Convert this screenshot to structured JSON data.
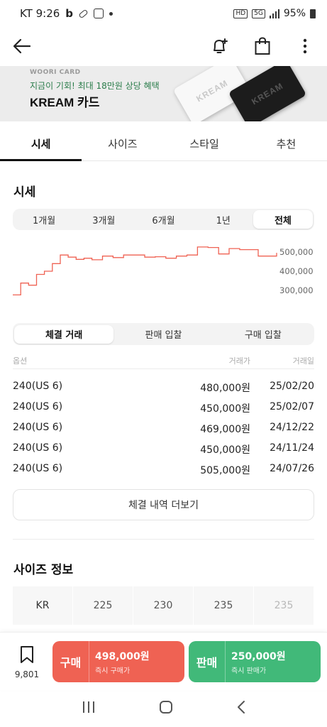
{
  "status": {
    "carrier_time": "KT 9:26",
    "battery": "95%",
    "net": "5G",
    "hd": "HD"
  },
  "banner": {
    "brand": "WOORI CARD",
    "promo": "지금이 기회! 최대 18만원 상당 혜택",
    "title": "KREAM 카드",
    "card_text": "KREAM"
  },
  "tabs": [
    "시세",
    "사이즈",
    "스타일",
    "추천"
  ],
  "price_section": {
    "title": "시세",
    "periods": [
      "1개월",
      "3개월",
      "6개월",
      "1년",
      "전체"
    ],
    "active_period": "전체"
  },
  "chart_data": {
    "type": "line",
    "color": "#ef6253",
    "y_ticks": [
      "500,000",
      "400,000",
      "300,000"
    ],
    "x": [
      0,
      3,
      6,
      9,
      12,
      15,
      18,
      21,
      24,
      27,
      30,
      34,
      38,
      42,
      46,
      50,
      54,
      58,
      62,
      66,
      70,
      74,
      78,
      82,
      86,
      90,
      93,
      96,
      100
    ],
    "values": [
      285000,
      340000,
      330000,
      380000,
      395000,
      430000,
      470000,
      460000,
      450000,
      455000,
      448000,
      465000,
      458000,
      470000,
      470000,
      460000,
      462000,
      455000,
      465000,
      470000,
      507000,
      505000,
      475000,
      500000,
      495000,
      495000,
      465000,
      465000,
      480000
    ],
    "ylim": [
      250000,
      520000
    ],
    "grid": false
  },
  "trade_tabs": [
    "체결 거래",
    "판매 입찰",
    "구매 입찰"
  ],
  "trade_table": {
    "headers": [
      "옵션",
      "거래가",
      "거래일"
    ],
    "rows": [
      {
        "option": "240(US 6)",
        "price": "480,000원",
        "date": "25/02/20"
      },
      {
        "option": "240(US 6)",
        "price": "450,000원",
        "date": "25/02/07"
      },
      {
        "option": "240(US 6)",
        "price": "469,000원",
        "date": "24/12/22"
      },
      {
        "option": "240(US 6)",
        "price": "450,000원",
        "date": "24/11/24"
      },
      {
        "option": "240(US 6)",
        "price": "505,000원",
        "date": "24/07/26"
      }
    ]
  },
  "more_button": "체결 내역 더보기",
  "size_info": {
    "title": "사이즈 정보",
    "cells": [
      "KR",
      "225",
      "230",
      "235",
      "235"
    ]
  },
  "bottom": {
    "wish_count": "9,801",
    "buy": {
      "label": "구매",
      "price": "498,000원",
      "sub": "즉시 구매가"
    },
    "sell": {
      "label": "판매",
      "price": "250,000원",
      "sub": "즉시 판매가"
    }
  }
}
